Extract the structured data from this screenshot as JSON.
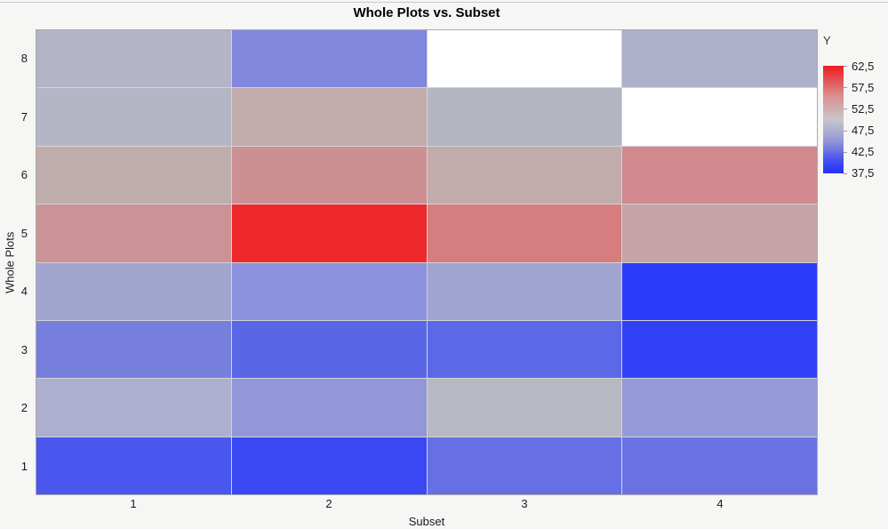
{
  "window": {
    "background": "#f6f6f5"
  },
  "chart_data": {
    "type": "heatmap",
    "title": "Whole Plots vs. Subset",
    "xlabel": "Subset",
    "ylabel": "Whole Plots",
    "x_categories": [
      "1",
      "2",
      "3",
      "4"
    ],
    "y_categories": [
      "8",
      "7",
      "6",
      "5",
      "4",
      "3",
      "2",
      "1"
    ],
    "missing_color": "#ffffff",
    "gridline_color": "#d3d3d7",
    "rows": [
      {
        "y": "8",
        "values": [
          48.5,
          44.5,
          null,
          48
        ],
        "colors": [
          "#b3b5c6",
          "#8187dc",
          null,
          "#adafcb"
        ]
      },
      {
        "y": "7",
        "values": [
          49,
          52.5,
          49,
          null
        ],
        "colors": [
          "#b5b6c5",
          "#c3acac",
          "#b4b6c2",
          null
        ]
      },
      {
        "y": "6",
        "values": [
          52,
          55.5,
          52.5,
          56
        ],
        "colors": [
          "#bfadad",
          "#cc9093",
          "#c1abab",
          "#d0898d"
        ]
      },
      {
        "y": "5",
        "values": [
          55,
          62.5,
          57,
          53
        ],
        "colors": [
          "#cb9395",
          "#ee282b",
          "#d57d7f",
          "#c5a3a7"
        ]
      },
      {
        "y": "4",
        "values": [
          47,
          45,
          46.5,
          38
        ],
        "colors": [
          "#a2a6cf",
          "#8b91dc",
          "#9fa4d1",
          "#2a3bf9"
        ]
      },
      {
        "y": "3",
        "values": [
          43.5,
          41.5,
          41.5,
          39
        ],
        "colors": [
          "#7680dc",
          "#5967e7",
          "#5b69e7",
          "#3142f6"
        ]
      },
      {
        "y": "2",
        "values": [
          48,
          46,
          49.5,
          46
        ],
        "colors": [
          "#adafce",
          "#9298d7",
          "#b7b8c2",
          "#949ad5"
        ]
      },
      {
        "y": "1",
        "values": [
          40.5,
          39.5,
          42.5,
          42.5
        ],
        "colors": [
          "#4957ee",
          "#3948f3",
          "#666fe4",
          "#6a72e3"
        ]
      }
    ],
    "legend": {
      "title": "Y",
      "position": "right",
      "min": 37.5,
      "max": 62.5,
      "tick_labels": [
        "62,5",
        "57,5",
        "52,5",
        "47,5",
        "42,5",
        "37,5"
      ],
      "gradient_stops": [
        "#ee1c1e 0%",
        "#d98f91 28%",
        "#c8c6ca 50%",
        "#9297d6 70%",
        "#4450ef 88%",
        "#2531fb 100%"
      ]
    }
  }
}
